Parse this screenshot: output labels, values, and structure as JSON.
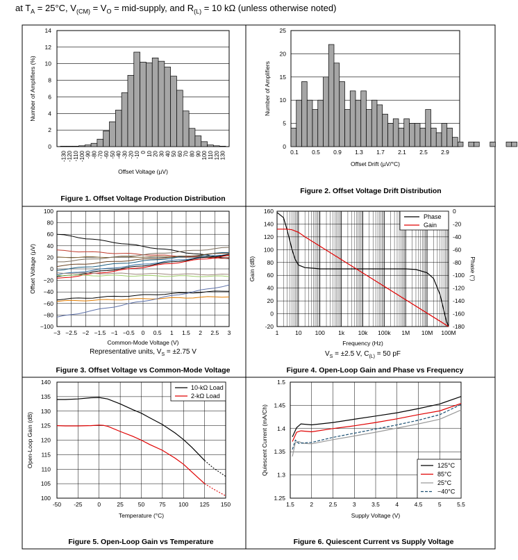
{
  "header": {
    "prefix": "at T",
    "ta_sub": "A",
    "part2": " = 25°C, V",
    "cm_sub": "(CM)",
    "part3": " = V",
    "o_sub": "O",
    "part4": " = mid-supply, and R",
    "l_sub": "(L)",
    "part5": " = 10 kΩ (unless otherwise noted)"
  },
  "chart_data": [
    {
      "id": "fig1",
      "type": "bar",
      "caption": "Figure 1. Offset Voltage Production Distribution",
      "xlabel": "Offset Voltage (µV)",
      "ylabel": "Number of Amplifiers (%)",
      "ylim": [
        0,
        14
      ],
      "yticks": [
        0,
        2,
        4,
        6,
        8,
        10,
        12,
        14
      ],
      "categories": [
        "-130",
        "-120",
        "-110",
        "-100",
        "-90",
        "-80",
        "-70",
        "-60",
        "-50",
        "-40",
        "-30",
        "-20",
        "-10",
        "0",
        "10",
        "20",
        "30",
        "40",
        "50",
        "60",
        "70",
        "80",
        "90",
        "100",
        "110",
        "120",
        "130"
      ],
      "values": [
        0.05,
        0.05,
        0.05,
        0.1,
        0.2,
        0.4,
        0.9,
        1.9,
        3.0,
        4.4,
        6.5,
        8.6,
        11.4,
        10.2,
        10.1,
        10.7,
        10.3,
        9.6,
        8.5,
        6.8,
        4.3,
        2.2,
        1.3,
        0.6,
        0.2,
        0.1,
        0.05
      ],
      "grid": true
    },
    {
      "id": "fig2",
      "type": "bar",
      "caption": "Figure 2. Offset Voltage Drift Distribution",
      "xlabel": "Offset Drift (µV/°C)",
      "ylabel": "Number of Amplifiers",
      "ylim": [
        0,
        25
      ],
      "yticks": [
        0,
        5,
        10,
        15,
        20,
        25
      ],
      "xticks": [
        "0.1",
        "0.5",
        "0.9",
        "1.3",
        "1.7",
        "2.1",
        "2.5",
        "2.9"
      ],
      "x_start": 0.0,
      "bin_width": 0.1,
      "values": [
        4,
        10,
        14,
        10,
        8,
        10,
        15,
        22,
        18,
        14,
        8,
        12,
        10,
        12,
        8,
        10,
        9,
        7,
        5,
        6,
        4,
        6,
        5,
        5,
        4,
        8,
        4,
        3,
        5,
        4,
        2,
        1,
        0,
        1,
        1,
        0,
        0,
        1,
        0,
        0,
        1,
        1,
        0,
        1,
        1
      ],
      "grid": true
    },
    {
      "id": "fig3",
      "type": "line",
      "caption": "Figure 3. Offset Voltage vs Common-Mode Voltage",
      "xlabel": "Common-Mode Voltage (V)",
      "note": "Representative units, V",
      "note_sub": "S",
      "note_end": " = ±2.75 V",
      "ylabel": "Offset Voltage (µV)",
      "xlim": [
        -3,
        3
      ],
      "ylim": [
        -100,
        100
      ],
      "xticks": [
        "−3",
        "−2.5",
        "−2",
        "−1.5",
        "−1",
        "−0.5",
        "0",
        "0.5",
        "1",
        "1.5",
        "2",
        "2.5",
        "3"
      ],
      "yticks": [
        "−100",
        "−80",
        "−60",
        "−40",
        "−20",
        "0",
        "20",
        "40",
        "60",
        "80",
        "100"
      ],
      "series": [
        {
          "color": "#000000",
          "y0": 60,
          "y1": 18
        },
        {
          "color": "#c0392b",
          "y0": 32,
          "y1": 18
        },
        {
          "color": "#8d6e3e",
          "y0": 20,
          "y1": 22
        },
        {
          "color": "#7a6c5a",
          "y0": 12,
          "y1": 37
        },
        {
          "color": "#1b5e80",
          "y0": -2,
          "y1": 29
        },
        {
          "color": "#6b4423",
          "y0": 5,
          "y1": 28
        },
        {
          "color": "#2e6da4",
          "y0": -10,
          "y1": 26
        },
        {
          "color": "#000000",
          "y0": -14,
          "y1": 25
        },
        {
          "color": "#e00000",
          "y0": -17,
          "y1": 23
        },
        {
          "color": "#a1887f",
          "y0": -7,
          "y1": -10
        },
        {
          "color": "#9ccc65",
          "y0": -11,
          "y1": -13
        },
        {
          "color": "#000000",
          "y0": -53,
          "y1": -38
        },
        {
          "color": "#e07b00",
          "y0": -56,
          "y1": -48
        },
        {
          "color": "#5b6fa8",
          "y0": -84,
          "y1": -28
        }
      ]
    },
    {
      "id": "fig4",
      "type": "line",
      "caption": "Figure 4. Open-Loop Gain and Phase vs Frequency",
      "xlabel": "Frequency (Hz)",
      "note": "V",
      "note_sub": "S",
      "note_mid": " = ±2.5 V, C",
      "note_sub2": "(L)",
      "note_end": " = 50 pF",
      "ylabel": "Gain (dB)",
      "ylabel2": "Phase (°)",
      "xscale": "log",
      "xlim": [
        1,
        100000000
      ],
      "ylim": [
        -20,
        160
      ],
      "y2lim": [
        -180,
        0
      ],
      "xticks": [
        "1",
        "10",
        "100",
        "1k",
        "10k",
        "100k",
        "1M",
        "10M",
        "100M"
      ],
      "yticks": [
        "-20",
        "0",
        "20",
        "40",
        "60",
        "80",
        "100",
        "120",
        "140",
        "160"
      ],
      "y2ticks": [
        "-180",
        "-160",
        "-140",
        "-120",
        "-100",
        "-80",
        "-60",
        "-40",
        "-20",
        "0"
      ],
      "legend": [
        "Phase",
        "Gain"
      ],
      "series": [
        {
          "name": "Phase",
          "color": "#000000",
          "x": [
            1,
            2,
            3,
            5,
            7,
            10,
            20,
            50,
            100,
            1000,
            10000,
            100000,
            1000000,
            3000000,
            10000000,
            20000000,
            40000000,
            60000000,
            80000000,
            100000000
          ],
          "y": [
            -2,
            -10,
            -30,
            -60,
            -75,
            -84,
            -88,
            -89,
            -90,
            -90,
            -90,
            -90,
            -90,
            -91,
            -96,
            -105,
            -130,
            -155,
            -172,
            -180
          ]
        },
        {
          "name": "Gain",
          "color": "#e00000",
          "x": [
            1,
            3,
            5,
            10,
            20,
            100000000
          ],
          "y": [
            132,
            132,
            131,
            127,
            120,
            -20
          ]
        }
      ]
    },
    {
      "id": "fig5",
      "type": "line",
      "caption": "Figure 5. Open-Loop Gain vs Temperature",
      "xlabel": "Temperature (°C)",
      "ylabel": "Open-Loop Gain (dB)",
      "xlim": [
        -50,
        150
      ],
      "ylim": [
        100,
        140
      ],
      "xticks": [
        "-50",
        "-25",
        "0",
        "25",
        "50",
        "75",
        "100",
        "125",
        "150"
      ],
      "yticks": [
        "100",
        "105",
        "110",
        "115",
        "120",
        "125",
        "130",
        "135",
        "140"
      ],
      "legend": [
        "10-kΩ Load",
        "2-kΩ Load"
      ],
      "series": [
        {
          "name": "10-kΩ Load",
          "color": "#000000",
          "x": [
            -50,
            -40,
            -25,
            -10,
            0,
            10,
            25,
            40,
            50,
            60,
            75,
            90,
            100,
            110,
            125
          ],
          "y": [
            134,
            134,
            134.2,
            134.6,
            134.7,
            134.2,
            132.5,
            130.5,
            129.3,
            127.7,
            125.4,
            122.5,
            120.2,
            117.5,
            113
          ],
          "dash_x": [
            125,
            135,
            150
          ],
          "dash_y": [
            113,
            110.5,
            107.5
          ]
        },
        {
          "name": "2-kΩ Load",
          "color": "#e00000",
          "x": [
            -50,
            -40,
            -25,
            -10,
            0,
            5,
            10,
            25,
            40,
            50,
            60,
            75,
            90,
            100,
            110,
            125
          ],
          "y": [
            125,
            124.9,
            124.9,
            125,
            125.2,
            125.1,
            124.8,
            123,
            121.3,
            120,
            118.5,
            116.5,
            113.8,
            111.7,
            109,
            105
          ],
          "dash_x": [
            125,
            135,
            150
          ],
          "dash_y": [
            105,
            103.2,
            100.8
          ]
        }
      ]
    },
    {
      "id": "fig6",
      "type": "line",
      "caption": "Figure 6. Quiescent Current vs Supply Voltage",
      "xlabel": "Supply Voltage (V)",
      "ylabel": "Quiescent Current (mA/Ch)",
      "xlim": [
        1.5,
        5.5
      ],
      "ylim": [
        1.25,
        1.5
      ],
      "xticks": [
        "1.5",
        "2",
        "2.5",
        "3",
        "3.5",
        "4",
        "4.5",
        "5",
        "5.5"
      ],
      "yticks": [
        "1.25",
        "1.3",
        "1.35",
        "1.4",
        "1.45",
        "1.5"
      ],
      "legend": [
        "125°C",
        "85°C",
        "25°C",
        "−40°C"
      ],
      "series": [
        {
          "name": "125°C",
          "color": "#000000",
          "dash": false,
          "x": [
            1.55,
            1.65,
            1.75,
            2,
            2.5,
            3,
            3.5,
            4,
            4.5,
            5,
            5.5
          ],
          "y": [
            1.382,
            1.402,
            1.41,
            1.408,
            1.413,
            1.42,
            1.427,
            1.434,
            1.443,
            1.453,
            1.469
          ]
        },
        {
          "name": "85°C",
          "color": "#e00000",
          "dash": false,
          "x": [
            1.55,
            1.65,
            1.75,
            2,
            2.5,
            3,
            3.5,
            4,
            4.5,
            5,
            5.5
          ],
          "y": [
            1.372,
            1.392,
            1.395,
            1.393,
            1.4,
            1.406,
            1.413,
            1.421,
            1.43,
            1.438,
            1.454
          ]
        },
        {
          "name": "25°C",
          "color": "#999999",
          "dash": false,
          "x": [
            1.55,
            1.62,
            1.7,
            1.8,
            2,
            2.5,
            3,
            3.5,
            4,
            4.5,
            5,
            5.5
          ],
          "y": [
            1.34,
            1.37,
            1.372,
            1.368,
            1.367,
            1.376,
            1.384,
            1.392,
            1.401,
            1.41,
            1.42,
            1.44
          ]
        },
        {
          "name": "−40°C",
          "color": "#1b4f72",
          "dash": true,
          "x": [
            1.55,
            1.62,
            1.7,
            1.8,
            2,
            2.5,
            3,
            3.5,
            4,
            4.5,
            5,
            5.5
          ],
          "y": [
            1.355,
            1.375,
            1.368,
            1.369,
            1.37,
            1.381,
            1.39,
            1.399,
            1.408,
            1.418,
            1.43,
            1.452
          ]
        }
      ]
    }
  ]
}
